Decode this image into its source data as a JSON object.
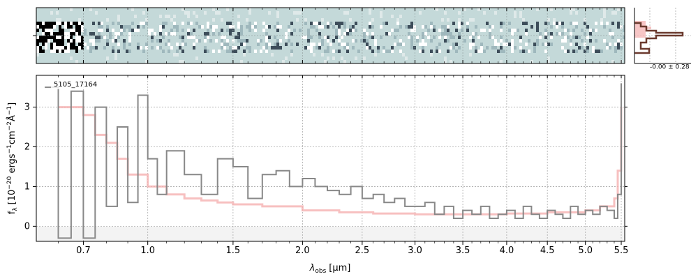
{
  "chart_data": [
    {
      "type": "heatmap",
      "panel": "2d-spectrum",
      "description_of_content": "2D spectrum cutout",
      "colormap": [
        "#c4d9d9",
        "#ffffff",
        "#000000"
      ],
      "grid": true
    },
    {
      "type": "histogram",
      "panel": "pixel-distribution",
      "annotation": "-0.00 ± 0.28",
      "colors": {
        "fill": "#f5b8b8",
        "line": "#6b3a2e"
      },
      "grid": true
    },
    {
      "type": "line",
      "panel": "1d-spectrum",
      "object_label": "5105_17164",
      "xlabel_main": "λ",
      "xlabel_sub": "obs",
      "xlabel_unit": "[μm]",
      "ylabel_prefix": "f",
      "ylabel_sub": "λ",
      "ylabel_units": "[10",
      "ylabel_exp1": "−20",
      "ylabel_mid": " ergs",
      "ylabel_exp2": "−1",
      "ylabel_cm": "cm",
      "ylabel_exp3": "−2",
      "ylabel_ang": "Å",
      "ylabel_exp4": "−1",
      "ylabel_close": "]",
      "x_tick_labels": [
        "0.7",
        "1.0",
        "1.5",
        "2.0",
        "2.5",
        "3.0",
        "3.5",
        "4.0",
        "4.5",
        "5.0",
        "5.5"
      ],
      "x_tick_values": [
        0.7,
        1.0,
        1.5,
        2.0,
        2.5,
        3.0,
        3.5,
        4.0,
        4.5,
        5.0,
        5.5
      ],
      "x_scale": "power-0.4",
      "xlim": [
        0.52,
        5.55
      ],
      "ylim": [
        -0.38,
        3.8
      ],
      "y_tick_labels": [
        "0",
        "1",
        "2",
        "3"
      ],
      "y_tick_values": [
        0,
        1,
        2,
        3
      ],
      "grid": true,
      "series": [
        {
          "role": "flux",
          "color": "#888888",
          "x": [
            0.55,
            0.6,
            0.65,
            0.7,
            0.75,
            0.8,
            0.85,
            0.9,
            0.95,
            1.0,
            1.05,
            1.1,
            1.2,
            1.3,
            1.4,
            1.5,
            1.6,
            1.7,
            1.8,
            1.9,
            2.0,
            2.1,
            2.2,
            2.3,
            2.4,
            2.5,
            2.6,
            2.7,
            2.8,
            2.9,
            3.0,
            3.1,
            3.2,
            3.3,
            3.4,
            3.5,
            3.6,
            3.7,
            3.8,
            3.9,
            4.0,
            4.1,
            4.2,
            4.3,
            4.4,
            4.5,
            4.6,
            4.7,
            4.8,
            4.9,
            5.0,
            5.1,
            5.2,
            5.3,
            5.4,
            5.45,
            5.5
          ],
          "y": [
            3.5,
            -0.3,
            3.4,
            -0.3,
            3.0,
            0.5,
            2.5,
            0.6,
            3.3,
            1.7,
            0.8,
            1.9,
            1.3,
            0.8,
            1.7,
            1.5,
            0.7,
            1.3,
            1.4,
            1.0,
            1.2,
            1.0,
            0.9,
            0.8,
            1.0,
            0.7,
            0.8,
            0.6,
            0.7,
            0.5,
            0.5,
            0.6,
            0.3,
            0.5,
            0.2,
            0.4,
            0.3,
            0.5,
            0.2,
            0.3,
            0.4,
            0.2,
            0.5,
            0.3,
            0.2,
            0.4,
            0.3,
            0.2,
            0.5,
            0.3,
            0.4,
            0.3,
            0.5,
            0.4,
            0.2,
            0.8,
            3.6
          ]
        },
        {
          "role": "model",
          "color": "#f5b0b0",
          "x": [
            0.6,
            0.7,
            0.75,
            0.8,
            0.85,
            0.9,
            1.0,
            1.1,
            1.2,
            1.3,
            1.4,
            1.5,
            1.7,
            2.0,
            2.3,
            2.6,
            3.0,
            3.5,
            4.0,
            4.5,
            5.0,
            5.2,
            5.4,
            5.45,
            5.5
          ],
          "y": [
            3.0,
            2.8,
            2.3,
            2.1,
            1.7,
            1.3,
            1.0,
            0.8,
            0.7,
            0.65,
            0.6,
            0.55,
            0.5,
            0.4,
            0.35,
            0.32,
            0.3,
            0.3,
            0.32,
            0.35,
            0.4,
            0.5,
            0.7,
            1.4,
            3.0
          ]
        }
      ]
    }
  ]
}
